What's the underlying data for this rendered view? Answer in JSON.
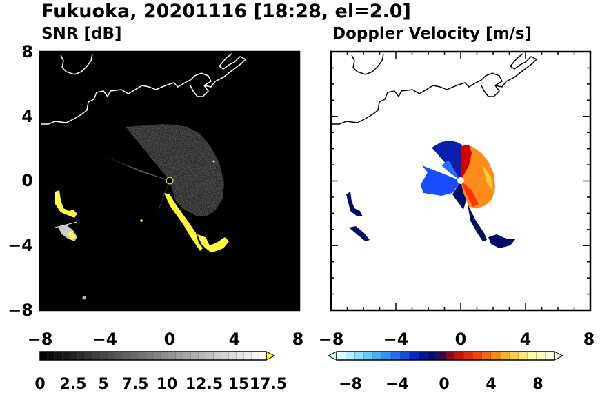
{
  "figure": {
    "title": "Fukuoka, 20201116 [18:28, el=2.0]"
  },
  "chart_data": [
    {
      "type": "heatmap",
      "title": "SNR [dB]",
      "xlim": [
        -8,
        8
      ],
      "ylim": [
        -8,
        8
      ],
      "x_ticks": [
        "−8",
        "−4",
        "0",
        "4",
        "8"
      ],
      "y_ticks": [
        "8",
        "4",
        "0",
        "−4",
        "−8"
      ],
      "background": "#000000",
      "colorbar": {
        "min": 0,
        "max": 18.75,
        "step": 0.625,
        "extend": "max",
        "ticks": [
          "0",
          "2.5",
          "5",
          "7.5",
          "10",
          "12.5",
          "15",
          "17.5"
        ],
        "tick_values": [
          0,
          2.5,
          5,
          7.5,
          10,
          12.5,
          15,
          17.5
        ],
        "colors": {
          "low": "#000000",
          "high": "#ffffff",
          "over": "#ffff00"
        }
      }
    },
    {
      "type": "heatmap",
      "title": "Doppler Velocity [m/s]",
      "xlim": [
        -8,
        8
      ],
      "ylim": [
        -8,
        8
      ],
      "x_ticks": [
        "−8",
        "−4",
        "0",
        "4",
        "8"
      ],
      "y_ticks": [
        "8",
        "4",
        "0",
        "−4",
        "−8"
      ],
      "background": "#ffffff",
      "colorbar": {
        "min": -10,
        "max": 10,
        "extend": "both",
        "ticks": [
          "−8",
          "−4",
          "0",
          "4",
          "8"
        ],
        "tick_values": [
          -8,
          -4,
          0,
          4,
          8
        ],
        "colors": [
          "#d9ffff",
          "#7fe6ff",
          "#33b3ff",
          "#1f66ff",
          "#0019cc",
          "#000a66",
          "#cc0000",
          "#ff3300",
          "#ff8000",
          "#ffcc33",
          "#ffff99",
          "#ffffe0"
        ]
      }
    }
  ]
}
